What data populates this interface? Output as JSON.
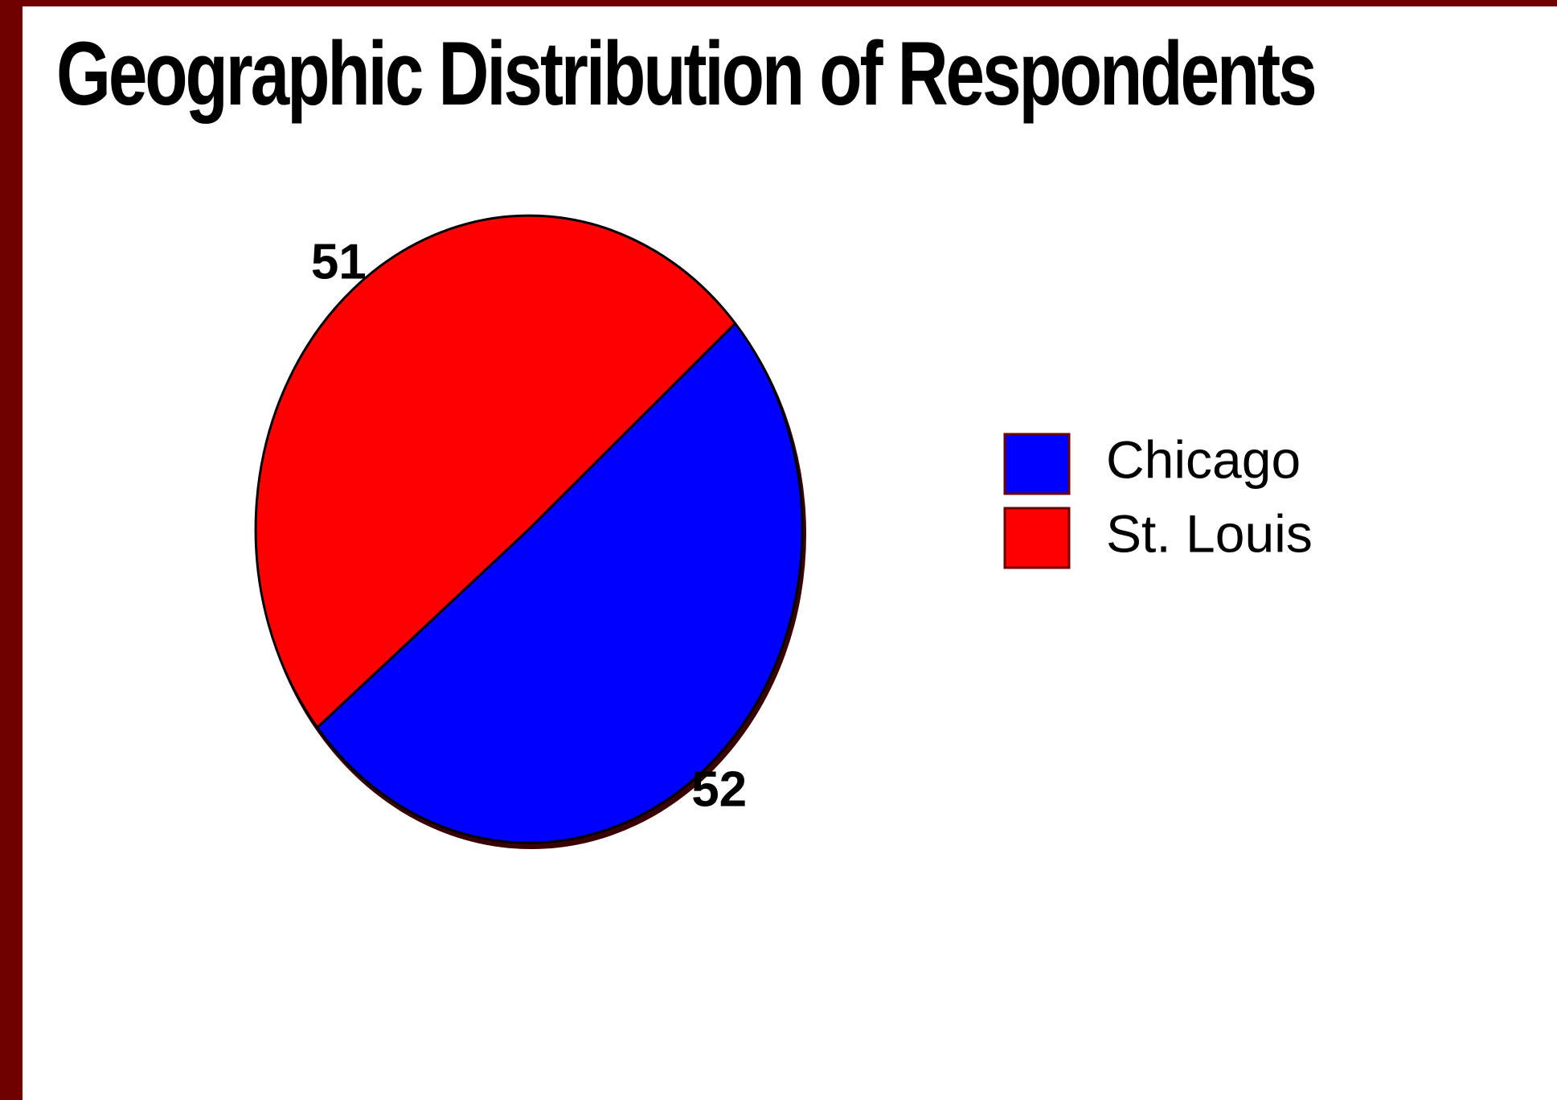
{
  "chart_data": {
    "type": "pie",
    "title": "Geographic Distribution of Respondents",
    "categories": [
      "Chicago",
      "St. Louis"
    ],
    "values": [
      52,
      51
    ],
    "colors": [
      "#0000ff",
      "#ff0000"
    ],
    "legend_position": "right"
  }
}
